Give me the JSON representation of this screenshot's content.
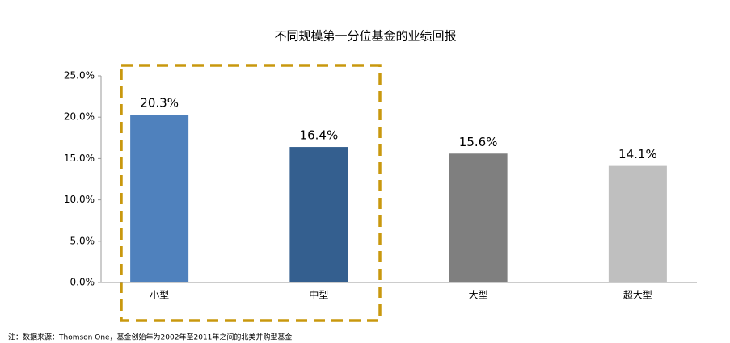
{
  "chart_data": {
    "type": "bar",
    "title": "不同规模第一分位基金的业绩回报",
    "categories": [
      "小型",
      "中型",
      "大型",
      "超大型"
    ],
    "values": [
      20.3,
      16.4,
      15.6,
      14.1
    ],
    "value_labels": [
      "20.3%",
      "16.4%",
      "15.6%",
      "14.1%"
    ],
    "colors": [
      "#4f81bd",
      "#345f8f",
      "#7f7f7f",
      "#bfbfbf"
    ],
    "ylim": [
      0,
      25
    ],
    "yticks": [
      {
        "value": 0,
        "label": "0.0%"
      },
      {
        "value": 5,
        "label": "5.0%"
      },
      {
        "value": 10,
        "label": "10.0%"
      },
      {
        "value": 15,
        "label": "15.0%"
      },
      {
        "value": 20,
        "label": "20.0%"
      },
      {
        "value": 25,
        "label": "25.0%"
      }
    ],
    "grid": false,
    "note": "注：数据来源：Thomson One，基金创始年为2002年至2011年之间的北美并购型基金"
  }
}
